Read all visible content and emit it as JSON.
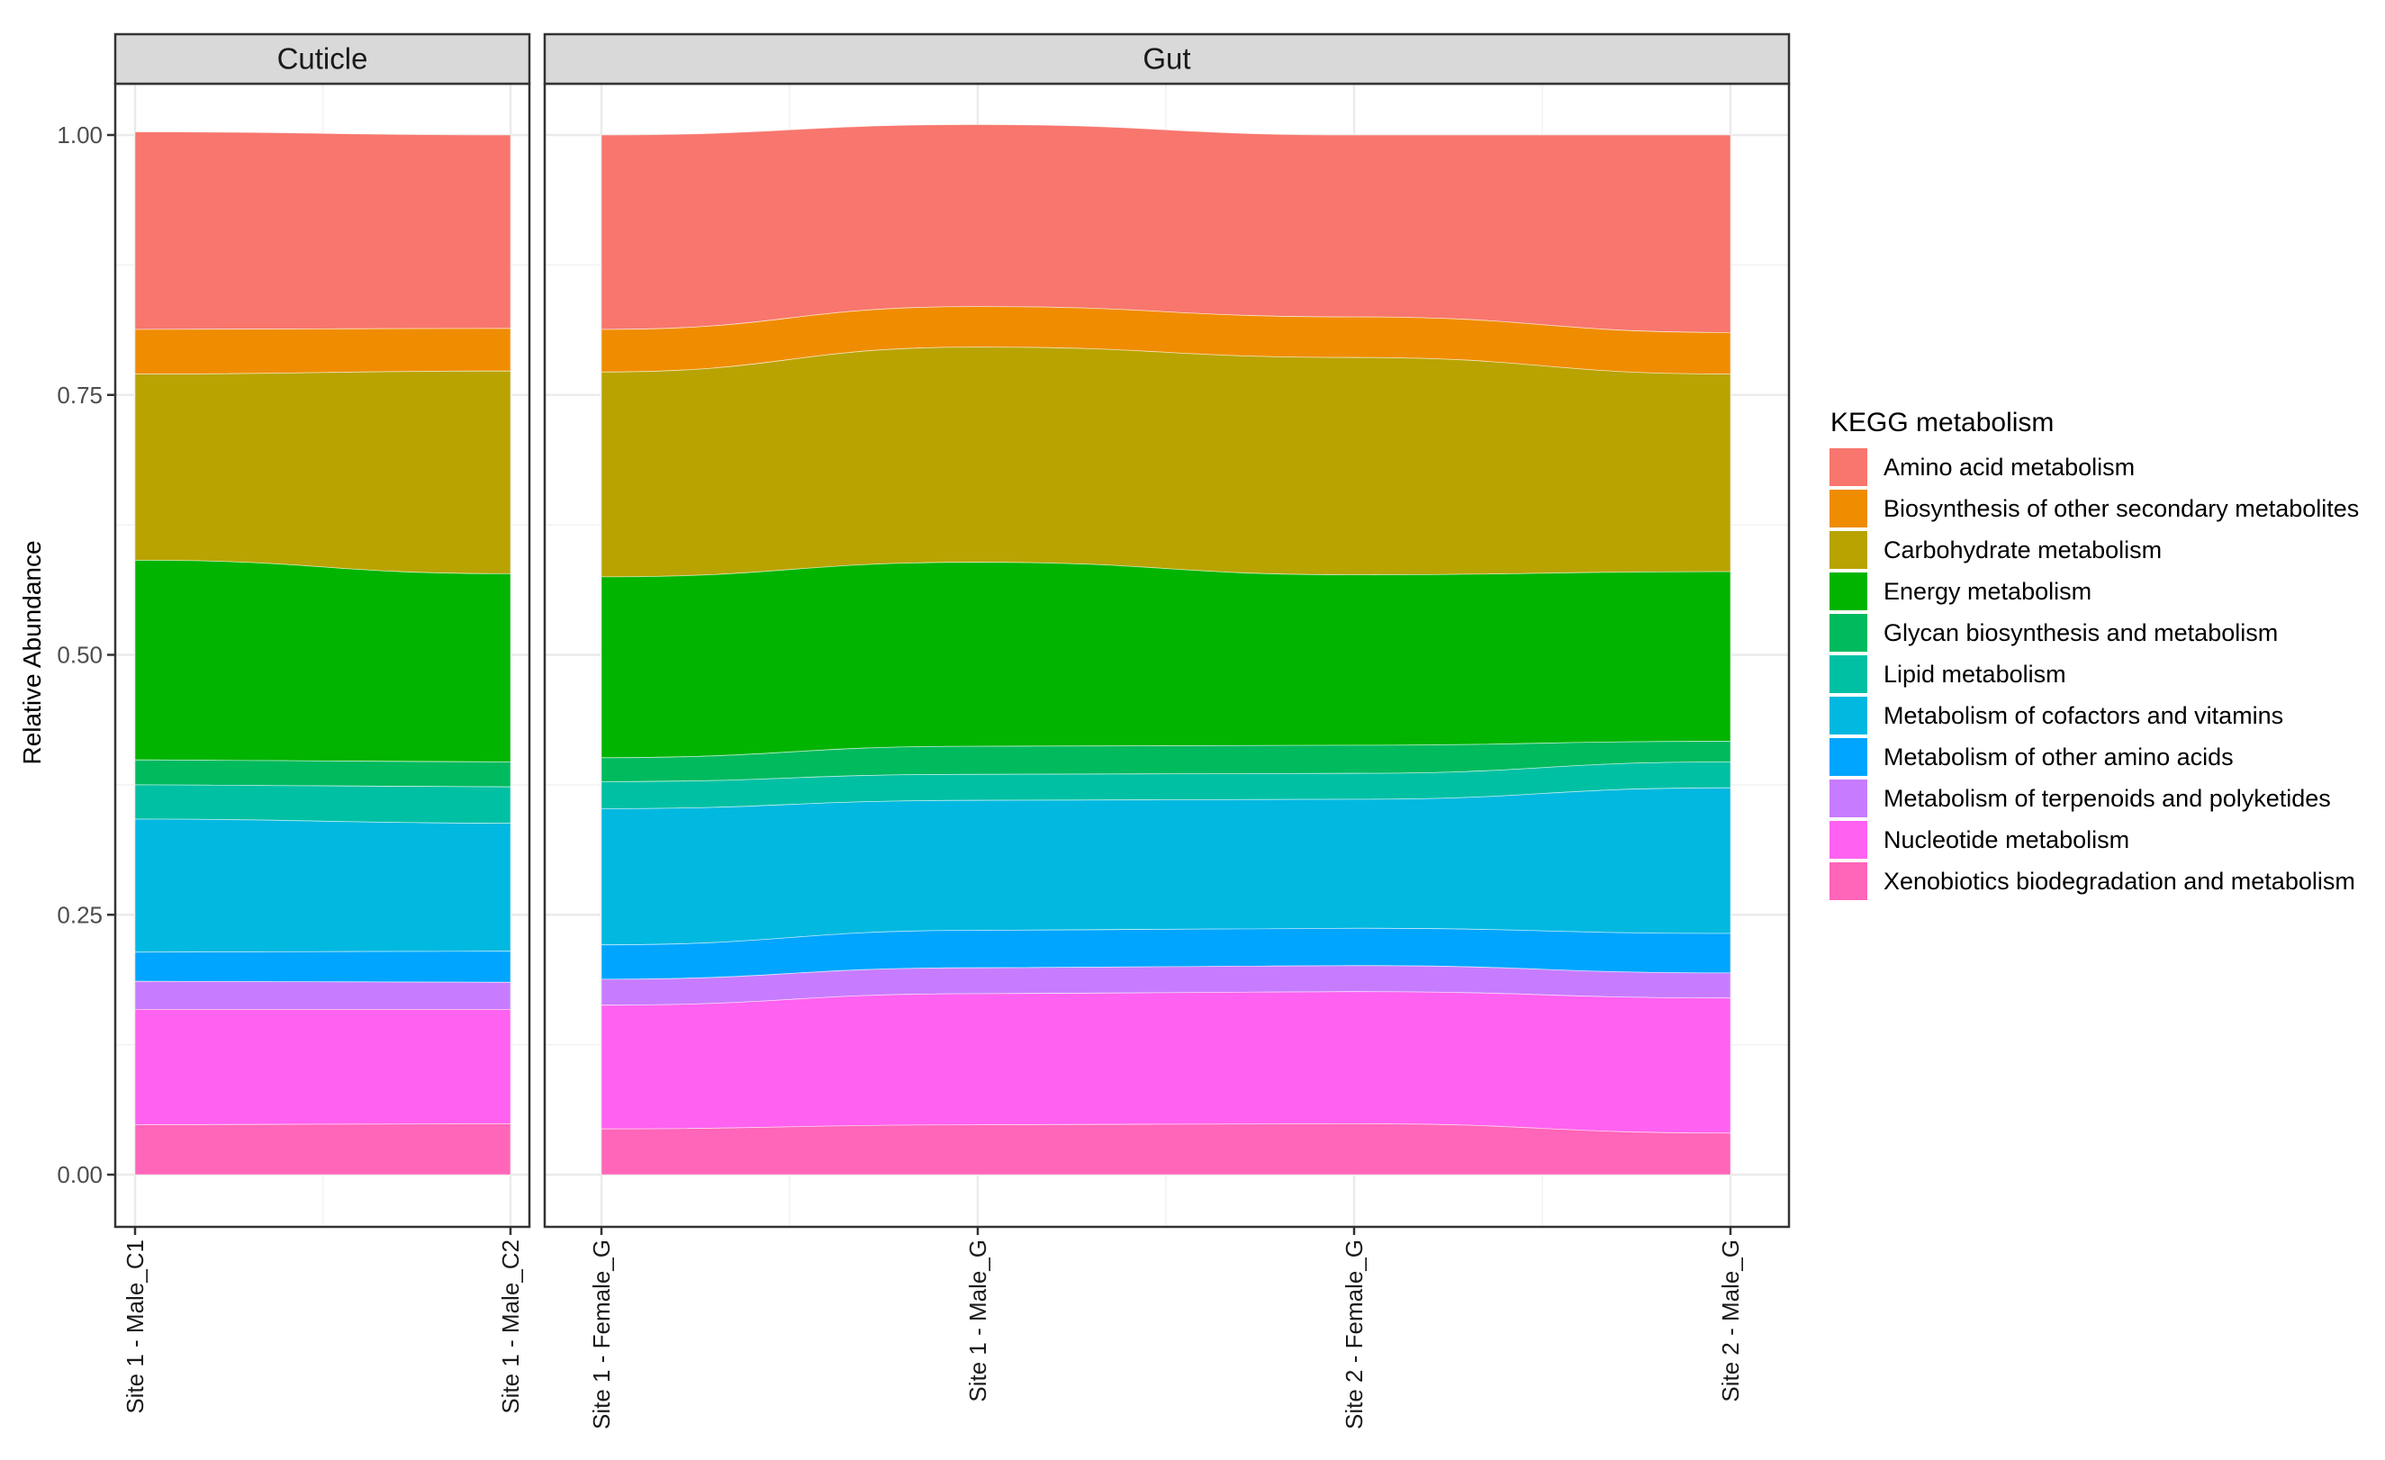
{
  "chart_data": {
    "type": "area",
    "ylabel": "Relative Abundance",
    "ylim": [
      0,
      1
    ],
    "yticks": [
      "0.00",
      "0.25",
      "0.50",
      "0.75",
      "1.00"
    ],
    "ytick_values": [
      0,
      0.25,
      0.5,
      0.75,
      1.0
    ],
    "grid": true,
    "legend": {
      "title": "KEGG metabolism",
      "position": "right"
    },
    "series_colors": [
      "#F8766D",
      "#F08C00",
      "#B8A300",
      "#00B400",
      "#00BA5E",
      "#00C0A4",
      "#00B8E0",
      "#00A5FF",
      "#C77CFF",
      "#FF61F0",
      "#FF65B8"
    ],
    "series_names": [
      "Amino acid metabolism",
      "Biosynthesis of other secondary metabolites",
      "Carbohydrate metabolism",
      "Energy metabolism",
      "Glycan biosynthesis and metabolism",
      "Lipid metabolism",
      "Metabolism of cofactors and vitamins",
      "Metabolism of other amino acids",
      "Metabolism of terpenoids and polyketides",
      "Nucleotide metabolism",
      "Xenobiotics biodegradation and metabolism"
    ],
    "panels": [
      {
        "strip": "Cuticle",
        "categories": [
          "Site 1 - Male_C1",
          "Site 1 - Male_C2"
        ],
        "series": [
          {
            "name": "Amino acid metabolism",
            "values": [
              0.19,
              0.186
            ]
          },
          {
            "name": "Biosynthesis of other secondary metabolites",
            "values": [
              0.043,
              0.041
            ]
          },
          {
            "name": "Carbohydrate metabolism",
            "values": [
              0.179,
              0.195
            ]
          },
          {
            "name": "Energy metabolism",
            "values": [
              0.192,
              0.181
            ]
          },
          {
            "name": "Glycan biosynthesis and metabolism",
            "values": [
              0.024,
              0.024
            ]
          },
          {
            "name": "Lipid metabolism",
            "values": [
              0.033,
              0.035
            ]
          },
          {
            "name": "Metabolism of cofactors and vitamins",
            "values": [
              0.128,
              0.123
            ]
          },
          {
            "name": "Metabolism of other amino acids",
            "values": [
              0.028,
              0.03
            ]
          },
          {
            "name": "Metabolism of terpenoids and polyketides",
            "values": [
              0.027,
              0.026
            ]
          },
          {
            "name": "Nucleotide metabolism",
            "values": [
              0.111,
              0.11
            ]
          },
          {
            "name": "Xenobiotics biodegradation and metabolism",
            "values": [
              0.048,
              0.049
            ]
          }
        ]
      },
      {
        "strip": "Gut",
        "categories": [
          "Site 1 - Female_G",
          "Site 1 - Male_G",
          "Site 2 - Female_G",
          "Site 2 - Male_G"
        ],
        "series": [
          {
            "name": "Amino acid metabolism",
            "values": [
              0.187,
              0.175,
              0.175,
              0.19
            ]
          },
          {
            "name": "Biosynthesis of other secondary metabolites",
            "values": [
              0.041,
              0.039,
              0.039,
              0.04
            ]
          },
          {
            "name": "Carbohydrate metabolism",
            "values": [
              0.197,
              0.207,
              0.209,
              0.19
            ]
          },
          {
            "name": "Energy metabolism",
            "values": [
              0.174,
              0.177,
              0.164,
              0.163
            ]
          },
          {
            "name": "Glycan biosynthesis and metabolism",
            "values": [
              0.023,
              0.027,
              0.027,
              0.02
            ]
          },
          {
            "name": "Lipid metabolism",
            "values": [
              0.026,
              0.025,
              0.025,
              0.025
            ]
          },
          {
            "name": "Metabolism of cofactors and vitamins",
            "values": [
              0.131,
              0.125,
              0.124,
              0.14
            ]
          },
          {
            "name": "Metabolism of other amino acids",
            "values": [
              0.033,
              0.036,
              0.036,
              0.038
            ]
          },
          {
            "name": "Metabolism of terpenoids and polyketides",
            "values": [
              0.025,
              0.025,
              0.025,
              0.024
            ]
          },
          {
            "name": "Nucleotide metabolism",
            "values": [
              0.119,
              0.126,
              0.127,
              0.13
            ]
          },
          {
            "name": "Xenobiotics biodegradation and metabolism",
            "values": [
              0.044,
              0.048,
              0.049,
              0.04
            ]
          }
        ]
      }
    ]
  }
}
